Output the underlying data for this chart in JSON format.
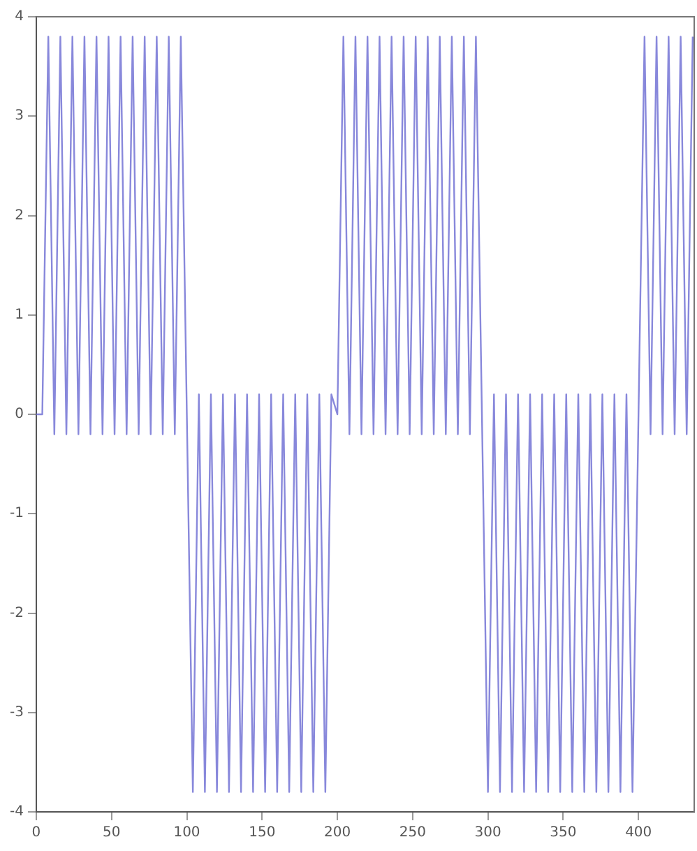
{
  "chart_data": {
    "type": "line",
    "x": [
      0,
      4,
      8,
      12,
      16,
      20,
      24,
      28,
      32,
      36,
      40,
      44,
      48,
      52,
      56,
      60,
      64,
      68,
      72,
      76,
      80,
      84,
      88,
      92,
      96,
      100,
      104,
      108,
      112,
      116,
      120,
      124,
      128,
      132,
      136,
      140,
      144,
      148,
      152,
      156,
      160,
      164,
      168,
      172,
      176,
      180,
      184,
      188,
      192,
      196,
      200,
      204,
      208,
      212,
      216,
      220,
      224,
      228,
      232,
      236,
      240,
      244,
      248,
      252,
      256,
      260,
      264,
      268,
      272,
      276,
      280,
      284,
      288,
      292,
      296,
      300,
      304,
      308,
      312,
      316,
      320,
      324,
      328,
      332,
      336,
      340,
      344,
      348,
      352,
      356,
      360,
      364,
      368,
      372,
      376,
      380,
      384,
      388,
      392,
      396,
      400,
      404,
      408,
      412,
      416,
      420,
      424,
      428,
      432,
      436
    ],
    "series": [
      {
        "color": "#6a6ad2",
        "values": [
          0,
          0,
          3.8,
          -0.2,
          3.8,
          -0.2,
          3.8,
          -0.2,
          3.8,
          -0.2,
          3.8,
          -0.2,
          3.8,
          -0.2,
          3.8,
          -0.2,
          3.8,
          -0.2,
          3.8,
          -0.2,
          3.8,
          -0.2,
          3.8,
          -0.2,
          3.8,
          0,
          -3.8,
          0.2,
          -3.8,
          0.2,
          -3.8,
          0.2,
          -3.8,
          0.2,
          -3.8,
          0.2,
          -3.8,
          0.2,
          -3.8,
          0.2,
          -3.8,
          0.2,
          -3.8,
          0.2,
          -3.8,
          0.2,
          -3.8,
          0.2,
          -3.8,
          0.2,
          0,
          3.8,
          -0.2,
          3.8,
          -0.2,
          3.8,
          -0.2,
          3.8,
          -0.2,
          3.8,
          -0.2,
          3.8,
          -0.2,
          3.8,
          -0.2,
          3.8,
          -0.2,
          3.8,
          -0.2,
          3.8,
          -0.2,
          3.8,
          -0.2,
          3.8,
          0,
          -3.8,
          0.2,
          -3.8,
          0.2,
          -3.8,
          0.2,
          -3.8,
          0.2,
          -3.8,
          0.2,
          -3.8,
          0.2,
          -3.8,
          0.2,
          -3.8,
          0.2,
          -3.8,
          0.2,
          -3.8,
          0.2,
          -3.8,
          0.2,
          -3.8,
          0.2,
          -3.8,
          0,
          3.8,
          -0.2,
          3.8,
          -0.2,
          3.8,
          -0.2,
          3.8,
          -0.2,
          3.8
        ]
      }
    ],
    "xlim": [
      0,
      437
    ],
    "xticks": [
      0,
      50,
      100,
      150,
      200,
      250,
      300,
      350,
      400
    ],
    "ylim": [
      -4,
      4
    ],
    "yticks": [
      -4,
      -3,
      -2,
      -1,
      0,
      1,
      2,
      3,
      4
    ],
    "grid": false,
    "legend": false,
    "marker": "none",
    "line_style": "solid"
  }
}
